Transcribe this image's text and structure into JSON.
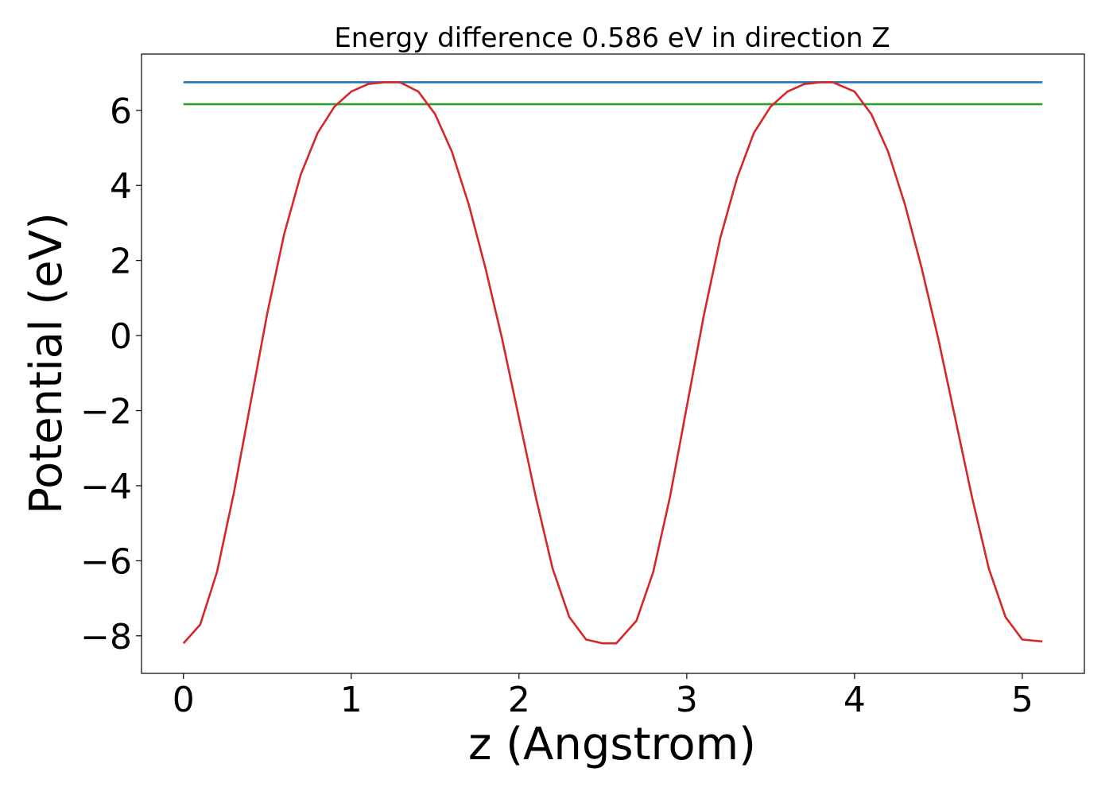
{
  "chart_data": {
    "type": "line",
    "title": "Energy difference 0.586 eV in direction Z",
    "xlabel": "z (Angstrom)",
    "ylabel": "Potential (eV)",
    "xlim": [
      -0.25,
      5.37
    ],
    "ylim": [
      -9.0,
      7.5
    ],
    "xticks": [
      0,
      1,
      2,
      3,
      4,
      5
    ],
    "xtick_labels": [
      "0",
      "1",
      "2",
      "3",
      "4",
      "5"
    ],
    "yticks": [
      -8,
      -6,
      -4,
      -2,
      0,
      2,
      4,
      6
    ],
    "ytick_labels": [
      "−8",
      "−6",
      "−4",
      "−2",
      "0",
      "2",
      "4",
      "6"
    ],
    "grid": false,
    "legend": "none",
    "series": [
      {
        "color": "#1f77b4",
        "x": [
          0,
          5.12
        ],
        "y": [
          6.75,
          6.75
        ]
      },
      {
        "color": "#2ca02c",
        "x": [
          0,
          5.12
        ],
        "y": [
          6.164,
          6.164
        ]
      },
      {
        "color": "#d62728",
        "x": [
          0.0,
          0.1,
          0.2,
          0.3,
          0.4,
          0.5,
          0.6,
          0.7,
          0.8,
          0.9,
          1.0,
          1.1,
          1.2,
          1.29,
          1.4,
          1.5,
          1.6,
          1.7,
          1.8,
          1.9,
          2.0,
          2.1,
          2.2,
          2.3,
          2.4,
          2.5,
          2.58,
          2.7,
          2.8,
          2.9,
          3.0,
          3.1,
          3.2,
          3.3,
          3.4,
          3.5,
          3.6,
          3.7,
          3.8,
          3.87,
          4.0,
          4.1,
          4.2,
          4.3,
          4.4,
          4.5,
          4.6,
          4.7,
          4.8,
          4.9,
          5.0,
          5.12
        ],
        "y": [
          -8.2,
          -7.7,
          -6.3,
          -4.2,
          -1.8,
          0.6,
          2.7,
          4.3,
          5.4,
          6.1,
          6.5,
          6.7,
          6.75,
          6.75,
          6.5,
          5.9,
          4.9,
          3.5,
          1.8,
          -0.1,
          -2.2,
          -4.3,
          -6.2,
          -7.5,
          -8.1,
          -8.2,
          -8.2,
          -7.6,
          -6.3,
          -4.3,
          -1.9,
          0.5,
          2.6,
          4.2,
          5.4,
          6.1,
          6.5,
          6.7,
          6.75,
          6.75,
          6.5,
          5.9,
          4.9,
          3.5,
          1.8,
          -0.1,
          -2.2,
          -4.3,
          -6.2,
          -7.5,
          -8.1,
          -8.15
        ]
      }
    ]
  }
}
